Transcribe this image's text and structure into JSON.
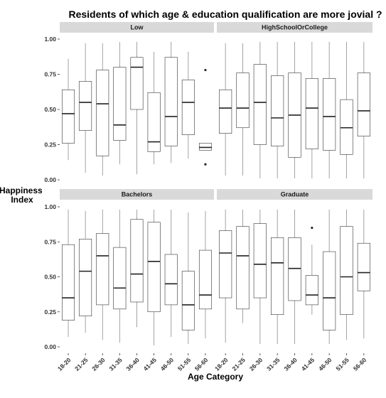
{
  "chart_data": {
    "type": "boxplot",
    "title": "Residents of which age & education qualification are more jovial ?",
    "xlabel": "Age Category",
    "ylabel": "Happiness Index",
    "ylim": [
      0,
      1
    ],
    "yticks": [
      "0.00",
      "0.25",
      "0.50",
      "0.75",
      "1.00"
    ],
    "categories": [
      "18-20",
      "21-25",
      "26-30",
      "31-35",
      "36-40",
      "41-45",
      "46-50",
      "51-55",
      "56-60"
    ],
    "grid": false,
    "colors": {
      "strip": "#d9d9d9",
      "box_line": "#333333",
      "whisker_line": "#999999"
    },
    "panels": [
      {
        "name": "Low",
        "boxes": [
          {
            "category": "18-20",
            "min": 0.14,
            "q1": 0.26,
            "median": 0.47,
            "q3": 0.64,
            "max": 0.86
          },
          {
            "category": "21-25",
            "min": 0.05,
            "q1": 0.35,
            "median": 0.55,
            "q3": 0.7,
            "max": 0.97
          },
          {
            "category": "26-30",
            "min": 0.03,
            "q1": 0.17,
            "median": 0.54,
            "q3": 0.78,
            "max": 0.97
          },
          {
            "category": "31-35",
            "min": 0.11,
            "q1": 0.28,
            "median": 0.39,
            "q3": 0.8,
            "max": 0.98
          },
          {
            "category": "36-40",
            "min": 0.04,
            "q1": 0.5,
            "median": 0.8,
            "q3": 0.87,
            "max": 0.98
          },
          {
            "category": "41-45",
            "min": 0.11,
            "q1": 0.2,
            "median": 0.27,
            "q3": 0.62,
            "max": 0.91
          },
          {
            "category": "46-50",
            "min": 0.12,
            "q1": 0.24,
            "median": 0.45,
            "q3": 0.87,
            "max": 0.98
          },
          {
            "category": "51-55",
            "min": 0.15,
            "q1": 0.32,
            "median": 0.55,
            "q3": 0.71,
            "max": 0.91
          },
          {
            "category": "56-60",
            "min": 0.21,
            "q1": 0.21,
            "median": 0.23,
            "q3": 0.26,
            "max": 0.26,
            "outliers": [
              0.78,
              0.11
            ]
          }
        ]
      },
      {
        "name": "HighSchoolOrCollege",
        "boxes": [
          {
            "category": "18-20",
            "min": 0.03,
            "q1": 0.33,
            "median": 0.51,
            "q3": 0.64,
            "max": 0.97
          },
          {
            "category": "21-25",
            "min": 0.03,
            "q1": 0.37,
            "median": 0.51,
            "q3": 0.76,
            "max": 0.97
          },
          {
            "category": "26-30",
            "min": 0.01,
            "q1": 0.25,
            "median": 0.55,
            "q3": 0.82,
            "max": 0.98
          },
          {
            "category": "31-35",
            "min": 0.01,
            "q1": 0.24,
            "median": 0.44,
            "q3": 0.74,
            "max": 0.98
          },
          {
            "category": "36-40",
            "min": 0.01,
            "q1": 0.16,
            "median": 0.46,
            "q3": 0.76,
            "max": 0.98
          },
          {
            "category": "41-45",
            "min": 0.01,
            "q1": 0.22,
            "median": 0.51,
            "q3": 0.72,
            "max": 0.98
          },
          {
            "category": "46-50",
            "min": 0.01,
            "q1": 0.21,
            "median": 0.45,
            "q3": 0.72,
            "max": 0.98
          },
          {
            "category": "51-55",
            "min": 0.01,
            "q1": 0.18,
            "median": 0.37,
            "q3": 0.57,
            "max": 0.98
          },
          {
            "category": "56-60",
            "min": 0.01,
            "q1": 0.31,
            "median": 0.49,
            "q3": 0.76,
            "max": 0.98
          }
        ]
      },
      {
        "name": "Bachelors",
        "boxes": [
          {
            "category": "18-20",
            "min": 0.07,
            "q1": 0.19,
            "median": 0.35,
            "q3": 0.73,
            "max": 0.98
          },
          {
            "category": "21-25",
            "min": 0.1,
            "q1": 0.22,
            "median": 0.54,
            "q3": 0.77,
            "max": 0.97
          },
          {
            "category": "26-30",
            "min": 0.05,
            "q1": 0.3,
            "median": 0.65,
            "q3": 0.81,
            "max": 0.98
          },
          {
            "category": "31-35",
            "min": 0.03,
            "q1": 0.27,
            "median": 0.42,
            "q3": 0.71,
            "max": 0.98
          },
          {
            "category": "36-40",
            "min": 0.14,
            "q1": 0.32,
            "median": 0.52,
            "q3": 0.91,
            "max": 0.98
          },
          {
            "category": "41-45",
            "min": 0.01,
            "q1": 0.25,
            "median": 0.61,
            "q3": 0.89,
            "max": 0.98
          },
          {
            "category": "46-50",
            "min": 0.07,
            "q1": 0.3,
            "median": 0.45,
            "q3": 0.66,
            "max": 0.98
          },
          {
            "category": "51-55",
            "min": 0.02,
            "q1": 0.12,
            "median": 0.3,
            "q3": 0.54,
            "max": 0.96
          },
          {
            "category": "56-60",
            "min": 0.06,
            "q1": 0.27,
            "median": 0.37,
            "q3": 0.69,
            "max": 0.97
          }
        ]
      },
      {
        "name": "Graduate",
        "boxes": [
          {
            "category": "18-20",
            "min": 0.03,
            "q1": 0.35,
            "median": 0.67,
            "q3": 0.83,
            "max": 0.98
          },
          {
            "category": "21-25",
            "min": 0.17,
            "q1": 0.27,
            "median": 0.65,
            "q3": 0.86,
            "max": 0.98
          },
          {
            "category": "26-30",
            "min": 0.02,
            "q1": 0.35,
            "median": 0.59,
            "q3": 0.88,
            "max": 0.98
          },
          {
            "category": "31-35",
            "min": 0.02,
            "q1": 0.23,
            "median": 0.6,
            "q3": 0.78,
            "max": 0.98
          },
          {
            "category": "36-40",
            "min": 0.02,
            "q1": 0.33,
            "median": 0.56,
            "q3": 0.78,
            "max": 0.98
          },
          {
            "category": "41-45",
            "min": 0.23,
            "q1": 0.3,
            "median": 0.37,
            "q3": 0.51,
            "max": 0.73,
            "outliers": [
              0.85
            ]
          },
          {
            "category": "46-50",
            "min": 0.02,
            "q1": 0.12,
            "median": 0.35,
            "q3": 0.68,
            "max": 0.98
          },
          {
            "category": "51-55",
            "min": 0.05,
            "q1": 0.23,
            "median": 0.5,
            "q3": 0.86,
            "max": 0.98
          },
          {
            "category": "56-60",
            "min": 0.06,
            "q1": 0.4,
            "median": 0.53,
            "q3": 0.74,
            "max": 0.98
          }
        ]
      }
    ]
  }
}
